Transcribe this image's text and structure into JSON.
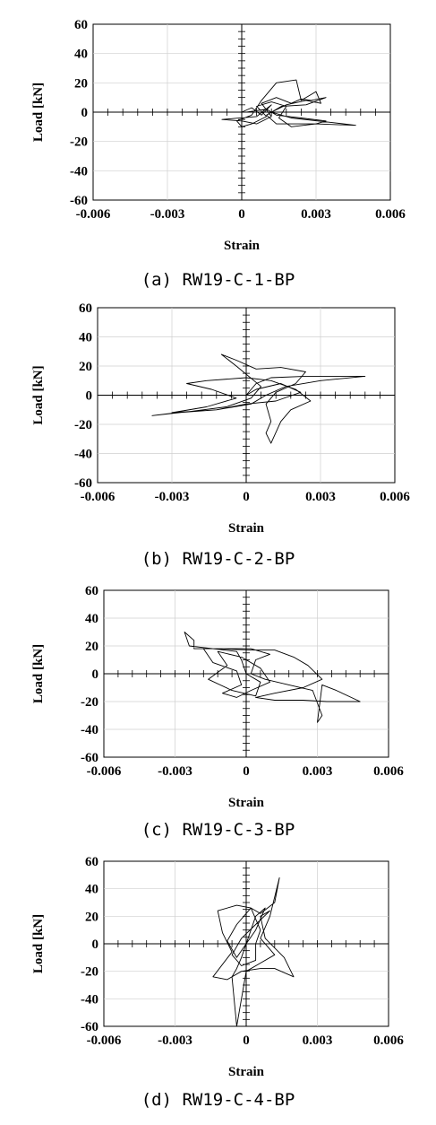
{
  "chart_data": [
    {
      "type": "line",
      "caption": "(a) RW19-C-1-BP",
      "xlabel": "Strain",
      "ylabel": "Load [kN]",
      "xlim": [
        -0.006,
        0.006
      ],
      "ylim": [
        -60,
        60
      ],
      "x_ticks": [
        "-0.006",
        "-0.003",
        "0",
        "0.003",
        "0.006"
      ],
      "y_ticks": [
        "60",
        "40",
        "20",
        "0",
        "-20",
        "-40",
        "-60"
      ],
      "grid": true,
      "series": [
        {
          "points": [
            [
              0,
              0
            ],
            [
              0.0004,
              3
            ],
            [
              0.0008,
              -2
            ],
            [
              0.0012,
              5
            ],
            [
              0.0006,
              -3
            ],
            [
              -0.0008,
              -5
            ],
            [
              0.0,
              -6
            ],
            [
              0.0006,
              -8
            ],
            [
              0.0012,
              -3
            ],
            [
              0.0008,
              6
            ],
            [
              0.0014,
              10
            ],
            [
              0.002,
              6
            ],
            [
              0.0024,
              9
            ],
            [
              0.0028,
              8
            ],
            [
              0.0034,
              10
            ],
            [
              0.0026,
              5
            ],
            [
              0.0016,
              4
            ],
            [
              0.001,
              -2
            ],
            [
              0.0014,
              -8
            ],
            [
              0.003,
              -8
            ],
            [
              0.0046,
              -9
            ],
            [
              0.0036,
              -7
            ],
            [
              0.002,
              -4
            ],
            [
              0.0012,
              0
            ],
            [
              0.0018,
              5
            ],
            [
              0.0026,
              8
            ],
            [
              0.0032,
              6
            ],
            [
              0.003,
              14
            ],
            [
              0.0024,
              8
            ],
            [
              0.0022,
              22
            ],
            [
              0.0014,
              20
            ],
            [
              0.0008,
              8
            ],
            [
              0.0004,
              -2
            ],
            [
              -0.0002,
              -6
            ],
            [
              0.0,
              -10
            ],
            [
              0.0004,
              -8
            ],
            [
              0.001,
              -3
            ],
            [
              0.0006,
              4
            ],
            [
              0.0012,
              7
            ],
            [
              0.0018,
              4
            ],
            [
              0.0015,
              -4
            ],
            [
              0.002,
              -10
            ],
            [
              0.003,
              -8
            ],
            [
              0.0034,
              -6
            ],
            [
              0.0024,
              -4
            ],
            [
              0.0014,
              -2
            ],
            [
              0.001,
              2
            ],
            [
              0.0002,
              0
            ]
          ]
        }
      ]
    },
    {
      "type": "line",
      "caption": "(b) RW19-C-2-BP",
      "xlabel": "Strain",
      "ylabel": "Load [kN]",
      "xlim": [
        -0.006,
        0.006
      ],
      "ylim": [
        -60,
        60
      ],
      "x_ticks": [
        "-0.006",
        "-0.003",
        "0",
        "0.003",
        "0.006"
      ],
      "y_ticks": [
        "60",
        "40",
        "20",
        "0",
        "-20",
        "-40",
        "-60"
      ],
      "grid": true,
      "series": [
        {
          "points": [
            [
              0,
              0
            ],
            [
              0.0004,
              8
            ],
            [
              0.001,
              12
            ],
            [
              0.0024,
              13
            ],
            [
              0.0048,
              13
            ],
            [
              0.003,
              10
            ],
            [
              0.0016,
              6
            ],
            [
              0.0008,
              0
            ],
            [
              0.0002,
              -6
            ],
            [
              -0.0012,
              -10
            ],
            [
              -0.0028,
              -12
            ],
            [
              -0.0038,
              -14
            ],
            [
              -0.0022,
              -11
            ],
            [
              -0.0008,
              -8
            ],
            [
              0.0002,
              -2
            ],
            [
              0.0006,
              6
            ],
            [
              -0.0004,
              20
            ],
            [
              -0.001,
              28
            ],
            [
              -0.0004,
              24
            ],
            [
              0.0004,
              18
            ],
            [
              0.0014,
              19
            ],
            [
              0.0024,
              16
            ],
            [
              0.002,
              8
            ],
            [
              0.0012,
              2
            ],
            [
              0.0008,
              -6
            ],
            [
              0.001,
              -18
            ],
            [
              0.0008,
              -26
            ],
            [
              0.001,
              -33
            ],
            [
              0.0014,
              -18
            ],
            [
              0.0018,
              -10
            ],
            [
              0.0026,
              -4
            ],
            [
              0.002,
              4
            ],
            [
              0.001,
              10
            ],
            [
              0.0,
              12
            ],
            [
              -0.0016,
              10
            ],
            [
              -0.0024,
              8
            ],
            [
              -0.0014,
              4
            ],
            [
              -0.0004,
              -2
            ],
            [
              -0.0016,
              -8
            ],
            [
              -0.003,
              -12
            ],
            [
              -0.0012,
              -10
            ],
            [
              0.0,
              -6
            ],
            [
              0.0012,
              -4
            ],
            [
              0.0022,
              2
            ],
            [
              0.0014,
              8
            ],
            [
              0.0004,
              4
            ],
            [
              0,
              0
            ]
          ]
        }
      ]
    },
    {
      "type": "line",
      "caption": "(c) RW19-C-3-BP",
      "xlabel": "Strain",
      "ylabel": "Load [kN]",
      "xlim": [
        -0.006,
        0.006
      ],
      "ylim": [
        -60,
        60
      ],
      "x_ticks": [
        "-0.006",
        "-0.003",
        "0",
        "0.003",
        "0.006"
      ],
      "y_ticks": [
        "60",
        "40",
        "20",
        "0",
        "-20",
        "-40",
        "-60"
      ],
      "grid": true,
      "series": [
        {
          "points": [
            [
              0,
              0
            ],
            [
              -0.0002,
              10
            ],
            [
              -0.0004,
              16
            ],
            [
              -0.0014,
              18
            ],
            [
              -0.0024,
              20
            ],
            [
              -0.0026,
              30
            ],
            [
              -0.0022,
              24
            ],
            [
              -0.0022,
              18
            ],
            [
              -0.0012,
              18
            ],
            [
              0.0002,
              17
            ],
            [
              0.0012,
              17
            ],
            [
              0.002,
              12
            ],
            [
              0.0026,
              6
            ],
            [
              0.0032,
              -4
            ],
            [
              0.0024,
              -10
            ],
            [
              0.0012,
              -14
            ],
            [
              0.0004,
              -17
            ],
            [
              0.0012,
              -19
            ],
            [
              0.0024,
              -19
            ],
            [
              0.0034,
              -20
            ],
            [
              0.0048,
              -20
            ],
            [
              0.0038,
              -12
            ],
            [
              0.0032,
              -8
            ],
            [
              0.003,
              -35
            ],
            [
              0.0032,
              -30
            ],
            [
              0.0028,
              -12
            ],
            [
              0.0018,
              -8
            ],
            [
              0.0008,
              -4
            ],
            [
              0.0002,
              0
            ],
            [
              0.0004,
              10
            ],
            [
              0.001,
              14
            ],
            [
              0.0002,
              18
            ],
            [
              -0.0006,
              18
            ],
            [
              -0.0018,
              18
            ],
            [
              -0.0014,
              8
            ],
            [
              -0.0004,
              2
            ],
            [
              -0.0002,
              -8
            ],
            [
              -0.001,
              -14
            ],
            [
              -0.0004,
              -17
            ],
            [
              0.0002,
              -12
            ],
            [
              0.001,
              -6
            ],
            [
              0.0006,
              4
            ],
            [
              -0.0002,
              12
            ],
            [
              -0.0012,
              16
            ],
            [
              -0.0008,
              6
            ],
            [
              -0.0016,
              -4
            ],
            [
              -0.0006,
              -12
            ],
            [
              0.0004,
              -16
            ],
            [
              0.0006,
              -6
            ],
            [
              0,
              0
            ]
          ]
        }
      ]
    },
    {
      "type": "line",
      "caption": "(d) RW19-C-4-BP",
      "xlabel": "Strain",
      "ylabel": "Load [kN]",
      "xlim": [
        -0.006,
        0.006
      ],
      "ylim": [
        -60,
        60
      ],
      "x_ticks": [
        "-0.006",
        "-0.003",
        "0",
        "0.003",
        "0.006"
      ],
      "y_ticks": [
        "60",
        "40",
        "20",
        "0",
        "-20",
        "-40",
        "-60"
      ],
      "grid": true,
      "series": [
        {
          "points": [
            [
              0,
              0
            ],
            [
              0.0004,
              20
            ],
            [
              0.0008,
              26
            ],
            [
              0.0004,
              10
            ],
            [
              0,
              0
            ],
            [
              -0.0002,
              -10
            ],
            [
              -0.0004,
              -18
            ],
            [
              -0.0006,
              -24
            ],
            [
              -0.0004,
              -60
            ],
            [
              -0.0002,
              -40
            ],
            [
              0.0,
              -20
            ],
            [
              0.0006,
              -14
            ],
            [
              0.0012,
              -8
            ],
            [
              0.0006,
              4
            ],
            [
              0.001,
              20
            ],
            [
              0.0014,
              48
            ],
            [
              0.0012,
              30
            ],
            [
              0.0006,
              22
            ],
            [
              0.0002,
              26
            ],
            [
              -0.0004,
              28
            ],
            [
              -0.0012,
              24
            ],
            [
              -0.001,
              8
            ],
            [
              -0.0006,
              -6
            ],
            [
              -0.0014,
              -24
            ],
            [
              -0.0008,
              -26
            ],
            [
              -0.0002,
              -20
            ],
            [
              0.0006,
              -18
            ],
            [
              0.0012,
              -18
            ],
            [
              0.002,
              -24
            ],
            [
              0.0016,
              -10
            ],
            [
              0.0008,
              4
            ],
            [
              0.0006,
              20
            ],
            [
              0.001,
              24
            ],
            [
              0.0004,
              14
            ],
            [
              -0.0002,
              4
            ],
            [
              -0.0006,
              -8
            ],
            [
              -0.0002,
              -16
            ],
            [
              0.0004,
              -12
            ],
            [
              0.0004,
              0
            ],
            [
              0.0006,
              10
            ],
            [
              0.0002,
              26
            ],
            [
              -0.0004,
              14
            ],
            [
              -0.0008,
              2
            ],
            [
              -0.0004,
              -10
            ],
            [
              0,
              0
            ]
          ]
        }
      ]
    }
  ]
}
